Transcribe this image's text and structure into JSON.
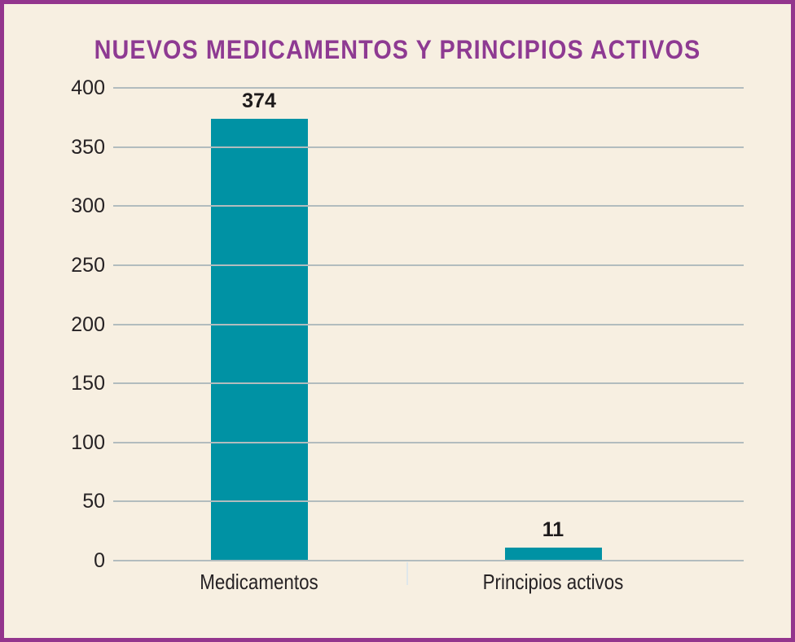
{
  "title": "NUEVOS MEDICAMENTOS Y PRINCIPIOS ACTIVOS",
  "chart_data": {
    "type": "bar",
    "title": "NUEVOS MEDICAMENTOS Y PRINCIPIOS ACTIVOS",
    "categories": [
      "Medicamentos",
      "Principios activos"
    ],
    "values": [
      374,
      11
    ],
    "xlabel": "",
    "ylabel": "",
    "ylim": [
      0,
      400
    ],
    "ytick_step": 50,
    "ytick_labels": [
      "0",
      "50",
      "100",
      "150",
      "200",
      "250",
      "300",
      "350",
      "400"
    ],
    "grid": true,
    "legend": "none",
    "value_labels": [
      "374",
      "11"
    ]
  },
  "colors": {
    "background": "#f7efe1",
    "frame_border": "#93358d",
    "title_text": "#8e3a92",
    "bar_fill": "#0092a4",
    "gridline": "#b2bcbe",
    "axis_text": "#262224",
    "value_label_text": "#1d1a1b",
    "category_divider": "#dfe7ea"
  }
}
